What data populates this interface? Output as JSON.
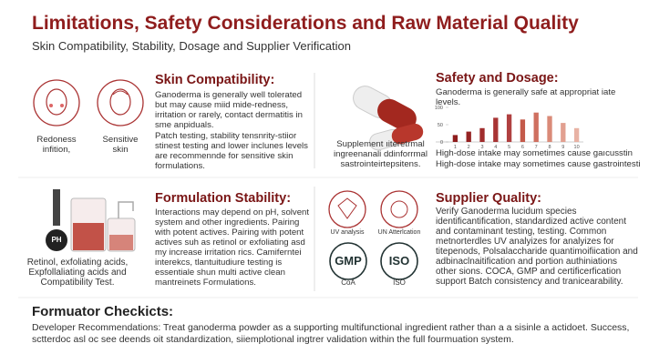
{
  "header": {
    "title": "Limitations, Safety Considerations and Raw Material Quality",
    "subtitle": "Skin Compatibility, Stability, Dosage and Supplier Verification"
  },
  "skin": {
    "heading": "Skin Compatibility:",
    "icon_labels": [
      "Redoness infition,",
      "Sensitive skin"
    ],
    "paragraphs": [
      "Ganoderma is generally well tolerated but may cause miid mide-redness, irritation or rarely, contact dermatitis in sme anpiduals.",
      "Patch testing, stability tensnrity-stiior stinest testing and lower inclunes levels are recommennde for sensitive skin formulations."
    ]
  },
  "safety": {
    "heading": "Safety and Dosage:",
    "text": "Ganoderma is generally safe at appropriat iate levels.",
    "caption": "Supplement ıiteretrmal ingreenanali ddinforrmal sastrointeirtepsitens.",
    "notes": [
      "High-dose intake may sometimes cause gaıcusstin",
      "High-dose intake may sometimes cause gastrointestin."
    ],
    "chart": {
      "type": "bar",
      "categories": [
        "1",
        "2",
        "3",
        "4",
        "5",
        "6",
        "7",
        "8",
        "9",
        "10"
      ],
      "values": [
        20,
        30,
        40,
        70,
        80,
        65,
        85,
        75,
        55,
        40
      ],
      "colors": [
        "#8f1d1d",
        "#952323",
        "#a02c2c",
        "#a83434",
        "#b04040",
        "#c45a4a",
        "#cf7060",
        "#da8a78",
        "#e2a090",
        "#e8b2a4"
      ],
      "ylim": [
        0,
        100
      ],
      "yticks": [
        0,
        50,
        100
      ]
    }
  },
  "stability": {
    "heading": "Formulation Stability:",
    "paragraph": "Interactions may depend on pH, solvent system and other ingredients. Pairing with potent actives. Pairing with potent actives suh as retinol or exfoliating asd my increase irritation rics. Camiferntei interekcs, tlantuitudiure testing is essentiale shun multi active clean mantreinets Formulations.",
    "icon_label": "PH",
    "caption": "Retinol, exfoliating acids, Expfollaliating acids and Compatibility Test."
  },
  "supplier": {
    "heading": "Supplier Quality:",
    "paragraph": "Verify Ganoderma lucidum species identificantification, standardized active content and contaminant testing, testing. Common metnorterdles UV analyizes for analyizes for titepenods, Polsalaccharide quantimoifiication and adbinaclnaitification and portion authiniations other sions. COCA, GMP and certificerfication support Batch consistency and tranicearability.",
    "icons": [
      "UV analysis",
      "UN Atterlcation",
      "GMP",
      "ISO"
    ],
    "icon_captions": [
      "CoA",
      "ISO"
    ]
  },
  "footer": {
    "heading": "Formuator Checkicts:",
    "text": "Developer Recommendations: Treat ganoderma powder as a supporting multifunctional ingredient rather than a a sisinle a actidoet. Success, sctterdoc asl oc see deends oit standardization, siiemplotional ingtrer validation within the full fourmuation system."
  }
}
